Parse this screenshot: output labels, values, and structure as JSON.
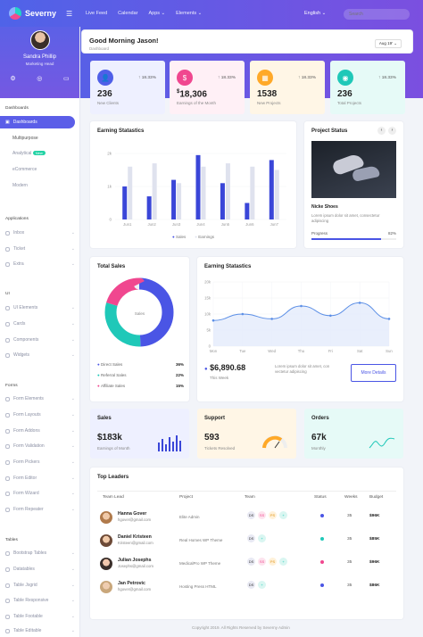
{
  "app": {
    "name": "Severny"
  },
  "nav": [
    "Live Feed",
    "Calendar",
    "Apps ⌄",
    "Elements ⌄"
  ],
  "header": {
    "language": "English ⌄",
    "search_placeholder": "Search"
  },
  "profile": {
    "name": "Sandra Phillip",
    "role": "Marketing Head"
  },
  "sidebar": {
    "dashboards_title": "Dashboards",
    "dashboards": "Dashboards",
    "sub": [
      "Multipurpose",
      "Analytical",
      "eCommerce",
      "Modern"
    ],
    "new_badge": "New",
    "applications_title": "Applications",
    "applications": [
      "Inbox",
      "Ticket",
      "Extra"
    ],
    "ui_title": "UI",
    "ui": [
      "UI Elements",
      "Cards",
      "Components",
      "Widgets"
    ],
    "forms_title": "Forms",
    "forms": [
      "Form Elements",
      "Form Layouts",
      "Form Addons",
      "Form Validation",
      "Form Pickers",
      "Form Editor",
      "Form Wizard",
      "Form Repeater"
    ],
    "tables_title": "Tables",
    "tables": [
      "Bootstrap Tables",
      "Datatables",
      "Table Jsgrid",
      "Table Responsive",
      "Table Footable",
      "Table Editable"
    ]
  },
  "greeting": {
    "title": "Good Morning Jason!",
    "breadcrumb": "Dashboard",
    "date": "Aug 19' ⌄"
  },
  "stats": [
    {
      "value": "236",
      "label": "New Clients",
      "pct": "18.33%",
      "color": "#4f5fe8",
      "bg": "#eef0ff",
      "icon": "user-icon"
    },
    {
      "value": "18,306",
      "prefix": "$",
      "label": "Earnings of the Month",
      "pct": "18.33%",
      "color": "#f0478f",
      "bg": "#fff0f6",
      "icon": "dollar-icon"
    },
    {
      "value": "1538",
      "label": "New Projects",
      "pct": "18.33%",
      "color": "#ffa928",
      "bg": "#fff6e6",
      "icon": "briefcase-icon"
    },
    {
      "value": "236",
      "label": "Total Projects",
      "pct": "18.33%",
      "color": "#1fc8b8",
      "bg": "#e6faf7",
      "icon": "globe-icon"
    }
  ],
  "earning_bar": {
    "title": "Earning Statastics",
    "legend": [
      "Sales",
      "Earnings"
    ]
  },
  "project": {
    "title": "Project Status",
    "name": "Nicke Shoes",
    "desc": "Lorem ipsum dolor sit amet, consectetur adipiscing",
    "progress_label": "Progress",
    "progress_value": "82%"
  },
  "total_sales": {
    "title": "Total Sales",
    "center": "Sales",
    "items": [
      {
        "label": "Direct Sales",
        "value": "36%",
        "color": "#4a55e5"
      },
      {
        "label": "Referral Sales",
        "value": "22%",
        "color": "#1fc8b8"
      },
      {
        "label": "Affiliate Sales",
        "value": "15%",
        "color": "#f0478f"
      }
    ]
  },
  "earning_line": {
    "title": "Earning Statastics",
    "value": "6,890.68",
    "prefix": "$",
    "period": "This Week",
    "desc": "Lorem ipsum dolor sit amet, con vectetur adipiscing",
    "button": "More Details"
  },
  "sales": {
    "title": "Sales",
    "value": "$183k",
    "label": "Earnings of Month"
  },
  "support": {
    "title": "Support",
    "value": "593",
    "label": "Tickets Resolved"
  },
  "orders": {
    "title": "Orders",
    "value": "67k",
    "label": "Monthly"
  },
  "leaders": {
    "title": "Top Leaders",
    "headers": [
      "Team Lead",
      "Project",
      "Team",
      "Status",
      "Weeks",
      "Budget"
    ],
    "rows": [
      {
        "name": "Hanna Gover",
        "email": "hgover@gmail.com",
        "project": "Elite Admin",
        "team": [
          "DS",
          "SS",
          "PS",
          "+"
        ],
        "status": "#4a55e5",
        "weeks": "35",
        "budget": "$96K"
      },
      {
        "name": "Daniel Kristeen",
        "email": "Kristeen@gmail.com",
        "project": "Real Homes WP Theme",
        "team": [
          "DS",
          "+"
        ],
        "status": "#1fc8b8",
        "weeks": "35",
        "budget": "$85K"
      },
      {
        "name": "Julian Josephs",
        "email": "Josephs@gmail.com",
        "project": "MedicalPro WP Theme",
        "team": [
          "DS",
          "SS",
          "PS",
          "+"
        ],
        "status": "#f0478f",
        "weeks": "35",
        "budget": "$96K"
      },
      {
        "name": "Jan Petrovic",
        "email": "hgover@gmail.com",
        "project": "Hosting Press HTML",
        "team": [
          "DS",
          "+"
        ],
        "status": "#4a55e5",
        "weeks": "35",
        "budget": "$86K"
      }
    ]
  },
  "footer": "Copyright 2019. All Rights Reserved by Severny Admin",
  "chart_data": [
    {
      "type": "bar",
      "title": "Earning Statastics",
      "categories": [
        "Jun1",
        "Jun2",
        "Jun3",
        "Jun4",
        "Jun5",
        "Jun6",
        "Jun7"
      ],
      "yticks": [
        "0",
        "1k",
        "2k"
      ],
      "ylim": [
        0,
        2
      ],
      "series": [
        {
          "name": "Sales",
          "values": [
            1.0,
            0.7,
            1.2,
            1.95,
            1.1,
            0.5,
            1.8
          ]
        },
        {
          "name": "Earnings",
          "values": [
            1.6,
            1.7,
            1.1,
            1.6,
            1.7,
            1.6,
            1.5
          ]
        }
      ]
    },
    {
      "type": "area",
      "title": "Earning Statastics",
      "categories": [
        "Mon",
        "Tue",
        "Wed",
        "Thu",
        "Fri",
        "Sat",
        "Sun"
      ],
      "yticks": [
        "0",
        "5k",
        "10k",
        "15k",
        "20k"
      ],
      "ylim": [
        0,
        20
      ],
      "series": [
        {
          "values": [
            8,
            10,
            8.5,
            12.5,
            9.5,
            13.5,
            8.5
          ]
        }
      ]
    },
    {
      "type": "pie",
      "title": "Total Sales",
      "categories": [
        "Direct Sales",
        "Referral Sales",
        "Affiliate Sales"
      ],
      "values": [
        36,
        22,
        15
      ]
    }
  ]
}
